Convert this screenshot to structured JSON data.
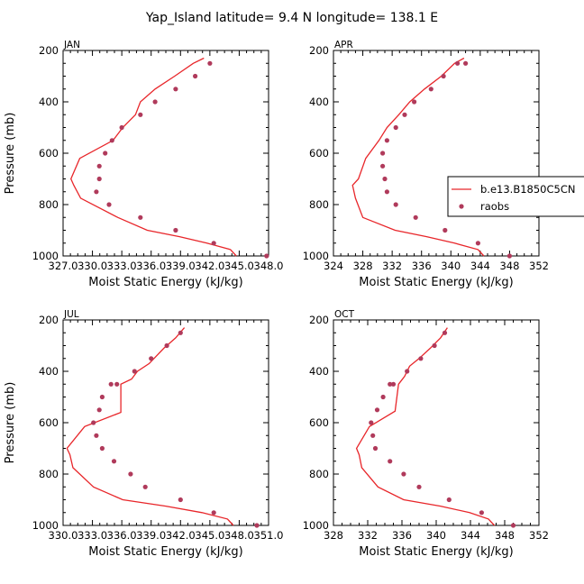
{
  "figure": {
    "title": "Yap_Island  latitude= 9.4 N longitude= 138.1 E"
  },
  "legend": {
    "entries": [
      {
        "label": "b.e13.B1850C5CN",
        "kind": "line",
        "color": "#e8262a"
      },
      {
        "label": "raobs",
        "kind": "marker",
        "color": "#b03a5b"
      }
    ]
  },
  "chart_data": [
    {
      "type": "line",
      "title": "JAN",
      "xlabel": "Moist Static Energy (kJ/kg)",
      "ylabel": "Pressure (mb)",
      "xlim": [
        327.0,
        348.0
      ],
      "ylim": [
        1000,
        200
      ],
      "xticks": [
        327.0,
        330.0,
        333.0,
        336.0,
        339.0,
        342.0,
        345.0,
        348.0
      ],
      "xticklabels": [
        "327.0",
        "330.0",
        "333.0",
        "336.0",
        "339.0",
        "342.0",
        "345.0",
        "348.0"
      ],
      "yticks": [
        200,
        400,
        600,
        800,
        1000
      ],
      "yticklabels": [
        "200",
        "400",
        "600",
        "800",
        "1000"
      ],
      "series": [
        {
          "kind": "line",
          "x": [
            344.7,
            344.1,
            341.7,
            338.9,
            335.6,
            332.6,
            328.8,
            328.1,
            327.8,
            328.7,
            332.1,
            333.1,
            334.4,
            334.9,
            336.4,
            338.4,
            340.3,
            341.4
          ],
          "y": [
            1000,
            975,
            950,
            925,
            900,
            850,
            775,
            725,
            700,
            620,
            550,
            500,
            450,
            400,
            350,
            300,
            250,
            230
          ]
        },
        {
          "kind": "marker",
          "x": [
            347.8,
            342.4,
            338.5,
            334.9,
            331.7,
            330.4,
            330.7,
            330.7,
            331.3,
            332.0,
            333.0,
            334.9,
            336.4,
            338.5,
            340.5,
            342.0
          ],
          "y": [
            1000,
            950,
            900,
            850,
            800,
            750,
            700,
            650,
            600,
            550,
            500,
            450,
            400,
            350,
            300,
            250
          ]
        }
      ]
    },
    {
      "type": "line",
      "title": "APR",
      "xlabel": "Moist Static Energy (kJ/kg)",
      "ylabel": "",
      "xlim": [
        324,
        352
      ],
      "ylim": [
        1000,
        200
      ],
      "xticks": [
        324,
        328,
        332,
        336,
        340,
        344,
        348,
        352
      ],
      "xticklabels": [
        "324",
        "328",
        "332",
        "336",
        "340",
        "344",
        "348",
        "352"
      ],
      "yticks": [
        200,
        400,
        600,
        800,
        1000
      ],
      "yticklabels": [
        "200",
        "400",
        "600",
        "800",
        "1000"
      ],
      "series": [
        {
          "kind": "line",
          "x": [
            344.5,
            343.7,
            340.5,
            336.7,
            332.4,
            328.0,
            327.0,
            326.6,
            327.4,
            328.4,
            330.2,
            331.3,
            332.9,
            334.4,
            336.4,
            338.7,
            340.5,
            341.8
          ],
          "y": [
            1000,
            975,
            950,
            925,
            900,
            850,
            775,
            725,
            700,
            620,
            550,
            500,
            450,
            400,
            350,
            300,
            250,
            230
          ]
        },
        {
          "kind": "marker",
          "x": [
            348.0,
            343.7,
            339.2,
            335.2,
            332.5,
            331.3,
            331.0,
            330.7,
            330.7,
            331.3,
            332.5,
            333.7,
            335.0,
            337.3,
            339.0,
            340.9,
            342.0
          ],
          "y": [
            1000,
            950,
            900,
            850,
            800,
            750,
            700,
            650,
            600,
            550,
            500,
            450,
            400,
            350,
            300,
            250,
            250
          ]
        }
      ]
    },
    {
      "type": "line",
      "title": "JUL",
      "xlabel": "Moist Static Energy (kJ/kg)",
      "ylabel": "Pressure (mb)",
      "xlim": [
        330.0,
        351.0
      ],
      "ylim": [
        1000,
        200
      ],
      "xticks": [
        330.0,
        333.0,
        336.0,
        339.0,
        342.0,
        345.0,
        348.0,
        351.0
      ],
      "xticklabels": [
        "330.0",
        "333.0",
        "336.0",
        "339.0",
        "342.0",
        "345.0",
        "348.0",
        "351.0"
      ],
      "yticks": [
        200,
        400,
        600,
        800,
        1000
      ],
      "yticklabels": [
        "200",
        "400",
        "600",
        "800",
        "1000"
      ],
      "series": [
        {
          "kind": "line",
          "x": [
            347.4,
            346.8,
            344.2,
            340.5,
            336.1,
            333.1,
            331.0,
            330.7,
            330.4,
            332.2,
            335.9,
            335.9,
            337.0,
            337.6,
            338.8,
            340.3,
            341.5,
            342.4
          ],
          "y": [
            1000,
            975,
            950,
            925,
            900,
            850,
            775,
            725,
            700,
            615,
            560,
            450,
            430,
            400,
            370,
            310,
            270,
            230
          ]
        },
        {
          "kind": "marker",
          "x": [
            349.8,
            345.4,
            342.0,
            338.4,
            336.9,
            335.2,
            334.0,
            333.4,
            333.1,
            333.7,
            334.0,
            334.9,
            335.5,
            337.3,
            339.0,
            340.6,
            342.0
          ],
          "y": [
            1000,
            950,
            900,
            850,
            800,
            750,
            700,
            650,
            600,
            550,
            500,
            450,
            450,
            400,
            350,
            300,
            250
          ]
        }
      ]
    },
    {
      "type": "line",
      "title": "OCT",
      "xlabel": "Moist Static Energy (kJ/kg)",
      "ylabel": "",
      "xlim": [
        328,
        352
      ],
      "ylim": [
        1000,
        200
      ],
      "xticks": [
        328,
        332,
        336,
        340,
        344,
        348,
        352
      ],
      "xticklabels": [
        "328",
        "332",
        "336",
        "340",
        "344",
        "348",
        "352"
      ],
      "yticks": [
        200,
        400,
        600,
        800,
        1000
      ],
      "yticklabels": [
        "200",
        "400",
        "600",
        "800",
        "1000"
      ],
      "series": [
        {
          "kind": "line",
          "x": [
            346.8,
            346.1,
            343.9,
            340.5,
            336.2,
            333.2,
            331.3,
            331.0,
            330.7,
            332.2,
            335.2,
            335.6,
            336.3,
            336.9,
            338.0,
            339.3,
            340.5,
            341.3
          ],
          "y": [
            1000,
            975,
            950,
            925,
            900,
            850,
            775,
            725,
            700,
            615,
            555,
            450,
            420,
            380,
            350,
            310,
            270,
            230
          ]
        },
        {
          "kind": "marker",
          "x": [
            349.0,
            345.3,
            341.5,
            338.0,
            336.2,
            334.6,
            332.9,
            332.6,
            332.4,
            333.1,
            333.8,
            334.6,
            335.0,
            336.6,
            338.2,
            339.8,
            341.0
          ],
          "y": [
            1000,
            950,
            900,
            850,
            800,
            750,
            700,
            650,
            600,
            550,
            500,
            450,
            450,
            400,
            350,
            300,
            250
          ]
        }
      ]
    }
  ]
}
